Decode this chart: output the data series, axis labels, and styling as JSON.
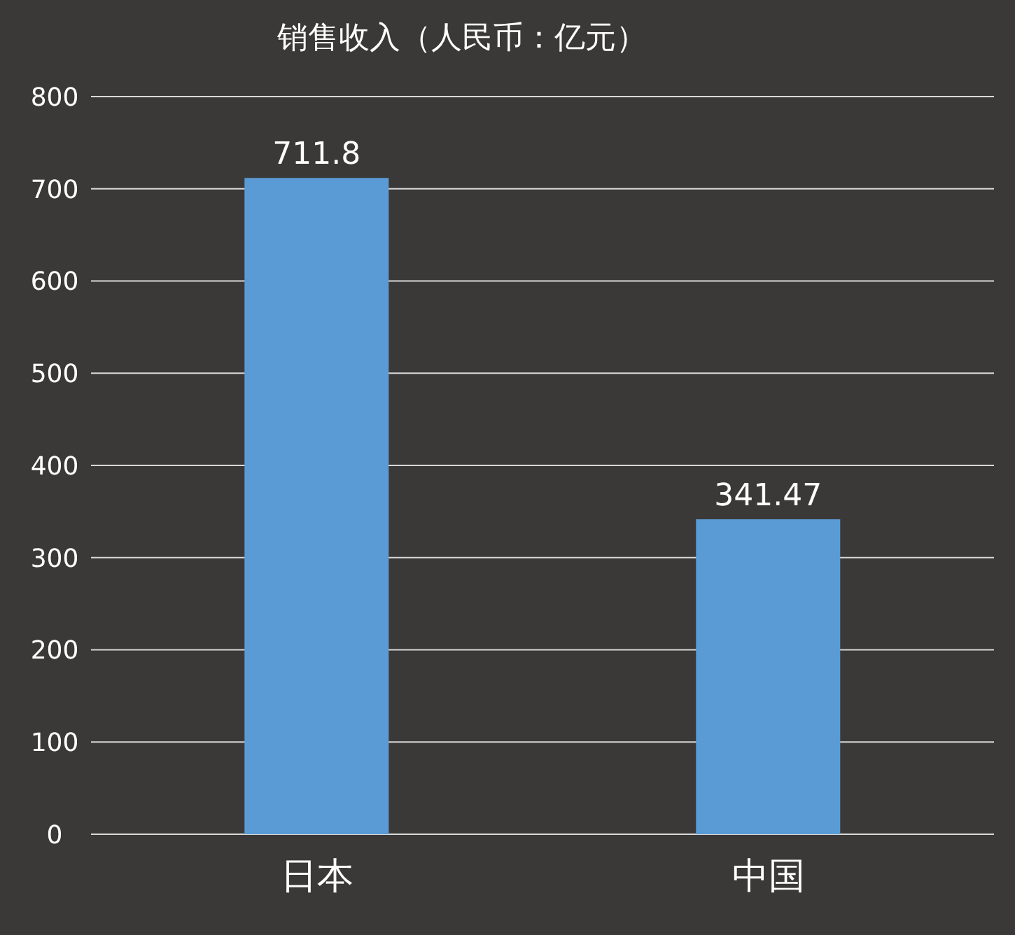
{
  "chart_data": {
    "type": "bar",
    "title": "销售收入（人民币：亿元）",
    "categories": [
      "日本",
      "中国"
    ],
    "values": [
      711.8,
      341.47
    ],
    "color": "#5b9bd5",
    "ylim": [
      0,
      800
    ],
    "yticks": [
      0,
      100,
      200,
      300,
      400,
      500,
      600,
      700,
      800
    ],
    "grid": "y",
    "data_labels": true
  }
}
